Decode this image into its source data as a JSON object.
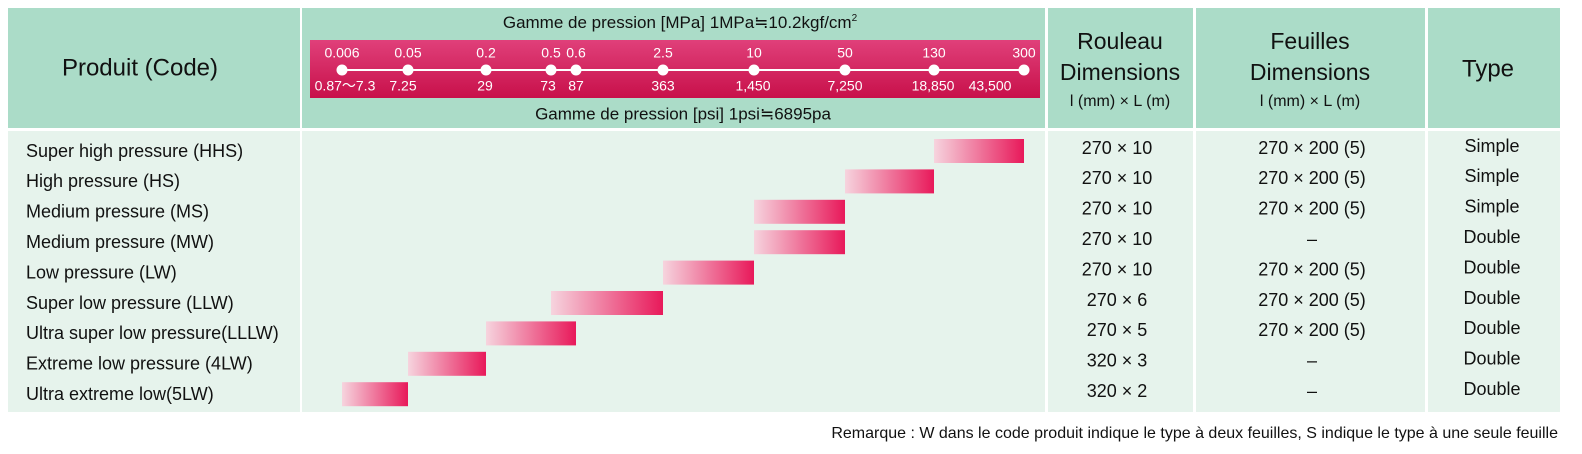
{
  "header": {
    "product": "Produit (Code)",
    "mpa_title": "Gamme de pression [MPa] 1MPa≒10.2kgf/cm",
    "mpa_sup": "2",
    "psi_title": "Gamme de pression [psi] 1psi≒6895pa",
    "roll": [
      "Rouleau",
      "Dimensions",
      "l (mm) × L (m)"
    ],
    "sheet": [
      "Feuilles",
      "Dimensions",
      "l (mm) × L (m)"
    ],
    "type": "Type"
  },
  "scale": {
    "mpa": [
      0.006,
      0.05,
      0.2,
      0.5,
      0.6,
      2.5,
      10,
      50,
      130,
      300
    ],
    "psi": [
      "0.87〜7.3",
      "7.25",
      "29",
      "73",
      "87",
      "363",
      "1,450",
      "7,250",
      "18,850",
      "43,500"
    ]
  },
  "rows": [
    {
      "product": "Super high pressure (HHS)",
      "range": [
        130,
        300
      ],
      "roll": "270 × 10",
      "sheet": "270 × 200 (5)",
      "type": "Simple"
    },
    {
      "product": "High pressure (HS)",
      "range": [
        50,
        130
      ],
      "roll": "270 × 10",
      "sheet": "270 × 200 (5)",
      "type": "Simple"
    },
    {
      "product": "Medium pressure (MS)",
      "range": [
        10,
        50
      ],
      "roll": "270 × 10",
      "sheet": "270 × 200 (5)",
      "type": "Simple"
    },
    {
      "product": "Medium pressure (MW)",
      "range": [
        10,
        50
      ],
      "roll": "270 × 10",
      "sheet": "–",
      "type": "Double"
    },
    {
      "product": "Low pressure (LW)",
      "range": [
        2.5,
        10
      ],
      "roll": "270 × 10",
      "sheet": "270 × 200 (5)",
      "type": "Double"
    },
    {
      "product": "Super low pressure (LLW)",
      "range": [
        0.5,
        2.5
      ],
      "roll": "270 × 6",
      "sheet": "270 × 200 (5)",
      "type": "Double"
    },
    {
      "product": "Ultra super low pressure(LLLW)",
      "range": [
        0.2,
        0.6
      ],
      "roll": "270 × 5",
      "sheet": "270 × 200 (5)",
      "type": "Double"
    },
    {
      "product": "Extreme low pressure (4LW)",
      "range": [
        0.05,
        0.2
      ],
      "roll": "320 × 3",
      "sheet": "–",
      "type": "Double"
    },
    {
      "product": "Ultra extreme low(5LW)",
      "range": [
        0.006,
        0.05
      ],
      "roll": "320 × 2",
      "sheet": "–",
      "type": "Double"
    }
  ],
  "note": "Remarque : W dans le code produit indique le type à deux feuilles, S indique le type à une seule feuille"
}
